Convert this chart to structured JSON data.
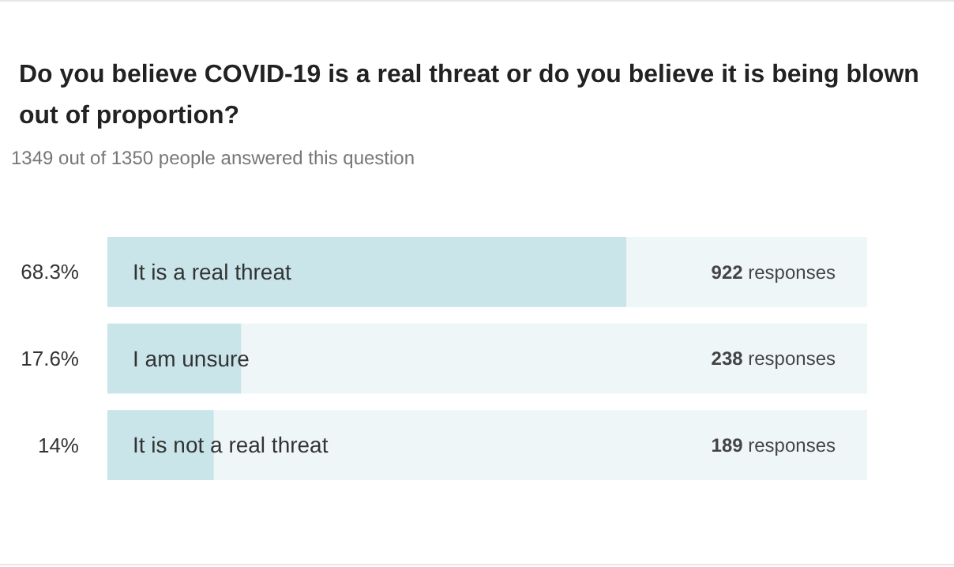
{
  "chart_data": {
    "type": "bar",
    "orientation": "horizontal",
    "title": "Do you believe COVID-19 is a real threat or do you believe it is being blown out of proportion?",
    "subtitle": "1349 out of 1350 people answered this question",
    "categories": [
      "It is a real threat",
      "I am unsure",
      "It is not a real threat"
    ],
    "values": [
      68.3,
      17.6,
      14
    ],
    "value_labels": [
      "68.3%",
      "17.6%",
      "14%"
    ],
    "color": "#c9e5e9",
    "xlim": [
      0,
      100
    ],
    "annotations": [
      "922 responses",
      "238 responses",
      "189 responses"
    ]
  }
}
